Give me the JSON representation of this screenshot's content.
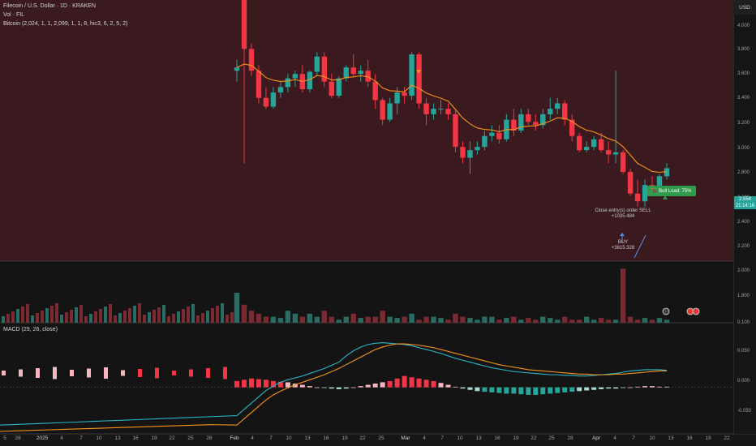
{
  "legend": {
    "title": "Filecoin / U.S. Dollar · 1D · KRAKEN",
    "vol": "Vol · FIL",
    "indicator": "Bitcoin (2,024, 1, 1, 2,099, 1, 1, 8, hic3, 6, 2, 5, 2)",
    "macd": "MACD (29, 26, close)"
  },
  "price_axis": {
    "currency": "USD",
    "ticks": [
      "4.000",
      "3.800",
      "3.600",
      "3.400",
      "3.200",
      "3.000",
      "2.800",
      "2.600",
      "2.400",
      "2.200",
      "2.000",
      "1.800",
      "0.100",
      "0.050",
      "0.000",
      "-0.050"
    ],
    "current_price": "2.554",
    "countdown": "21:14:16"
  },
  "x_axis": [
    "5",
    "28",
    "2025",
    "4",
    "7",
    "10",
    "13",
    "16",
    "19",
    "22",
    "25",
    "28",
    "Feb",
    "4",
    "7",
    "10",
    "13",
    "16",
    "19",
    "22",
    "25",
    "Mar",
    "4",
    "7",
    "10",
    "13",
    "16",
    "19",
    "22",
    "25",
    "28",
    "Apr",
    "4",
    "7",
    "10",
    "13",
    "16",
    "19",
    "22"
  ],
  "annotations": {
    "close_label": "Close entry(s) order SELL",
    "close_value": "+1035.484",
    "buy_label": "BUY",
    "buy_value": "+3615.328",
    "bull_badge": "Bull Load: 75%"
  },
  "colors": {
    "bull": "#26a69a",
    "bear": "#f23645",
    "ma": "#f7931a",
    "macd_line": "#29b6c6",
    "signal_line": "#f7931a",
    "panel_bg": "#3a1a1e"
  },
  "chart_data": {
    "type": "candlestick",
    "price_range": [
      1.7,
      4.1
    ],
    "candles": [
      {
        "o": 3.45,
        "h": 3.55,
        "l": 3.35,
        "c": 3.48
      },
      {
        "o": 4.3,
        "h": 4.4,
        "l": 2.6,
        "c": 3.65
      },
      {
        "o": 3.65,
        "h": 3.7,
        "l": 3.4,
        "c": 3.45
      },
      {
        "o": 3.45,
        "h": 3.5,
        "l": 3.15,
        "c": 3.2
      },
      {
        "o": 3.2,
        "h": 3.3,
        "l": 3.1,
        "c": 3.12
      },
      {
        "o": 3.12,
        "h": 3.3,
        "l": 3.1,
        "c": 3.25
      },
      {
        "o": 3.25,
        "h": 3.35,
        "l": 3.2,
        "c": 3.3
      },
      {
        "o": 3.3,
        "h": 3.42,
        "l": 3.25,
        "c": 3.38
      },
      {
        "o": 3.38,
        "h": 3.45,
        "l": 3.3,
        "c": 3.42
      },
      {
        "o": 3.42,
        "h": 3.5,
        "l": 3.25,
        "c": 3.28
      },
      {
        "o": 3.28,
        "h": 3.45,
        "l": 3.25,
        "c": 3.44
      },
      {
        "o": 3.44,
        "h": 3.62,
        "l": 3.4,
        "c": 3.58
      },
      {
        "o": 3.58,
        "h": 3.62,
        "l": 3.3,
        "c": 3.35
      },
      {
        "o": 3.35,
        "h": 3.42,
        "l": 3.2,
        "c": 3.22
      },
      {
        "o": 3.22,
        "h": 3.4,
        "l": 3.2,
        "c": 3.38
      },
      {
        "o": 3.38,
        "h": 3.5,
        "l": 3.35,
        "c": 3.48
      },
      {
        "o": 3.48,
        "h": 3.6,
        "l": 3.4,
        "c": 3.42
      },
      {
        "o": 3.42,
        "h": 3.5,
        "l": 3.35,
        "c": 3.45
      },
      {
        "o": 3.45,
        "h": 3.55,
        "l": 3.3,
        "c": 3.35
      },
      {
        "o": 3.35,
        "h": 3.42,
        "l": 3.1,
        "c": 3.18
      },
      {
        "o": 3.18,
        "h": 3.2,
        "l": 2.95,
        "c": 3.0
      },
      {
        "o": 3.0,
        "h": 3.2,
        "l": 2.98,
        "c": 3.15
      },
      {
        "o": 3.15,
        "h": 3.3,
        "l": 3.05,
        "c": 3.25
      },
      {
        "o": 3.25,
        "h": 3.3,
        "l": 3.15,
        "c": 3.22
      },
      {
        "o": 3.22,
        "h": 3.62,
        "l": 3.18,
        "c": 3.6
      },
      {
        "o": 3.6,
        "h": 3.62,
        "l": 3.1,
        "c": 3.15
      },
      {
        "o": 3.15,
        "h": 3.2,
        "l": 2.95,
        "c": 3.05
      },
      {
        "o": 3.05,
        "h": 3.15,
        "l": 3.0,
        "c": 3.1
      },
      {
        "o": 3.1,
        "h": 3.18,
        "l": 3.05,
        "c": 3.1
      },
      {
        "o": 3.1,
        "h": 3.15,
        "l": 3.0,
        "c": 3.05
      },
      {
        "o": 3.05,
        "h": 3.1,
        "l": 2.7,
        "c": 2.75
      },
      {
        "o": 2.75,
        "h": 2.8,
        "l": 2.6,
        "c": 2.65
      },
      {
        "o": 2.65,
        "h": 2.8,
        "l": 2.5,
        "c": 2.72
      },
      {
        "o": 2.72,
        "h": 2.8,
        "l": 2.68,
        "c": 2.75
      },
      {
        "o": 2.75,
        "h": 2.9,
        "l": 2.72,
        "c": 2.85
      },
      {
        "o": 2.85,
        "h": 2.95,
        "l": 2.8,
        "c": 2.88
      },
      {
        "o": 2.88,
        "h": 2.95,
        "l": 2.78,
        "c": 2.82
      },
      {
        "o": 2.82,
        "h": 3.05,
        "l": 2.8,
        "c": 3.0
      },
      {
        "o": 3.0,
        "h": 3.1,
        "l": 2.85,
        "c": 2.9
      },
      {
        "o": 2.9,
        "h": 3.1,
        "l": 2.88,
        "c": 3.05
      },
      {
        "o": 3.05,
        "h": 3.1,
        "l": 2.95,
        "c": 2.98
      },
      {
        "o": 2.98,
        "h": 3.05,
        "l": 2.9,
        "c": 2.95
      },
      {
        "o": 2.95,
        "h": 3.1,
        "l": 2.92,
        "c": 3.05
      },
      {
        "o": 3.05,
        "h": 3.2,
        "l": 3.0,
        "c": 3.1
      },
      {
        "o": 3.1,
        "h": 3.2,
        "l": 3.05,
        "c": 3.15
      },
      {
        "o": 3.15,
        "h": 3.18,
        "l": 2.95,
        "c": 3.0
      },
      {
        "o": 3.0,
        "h": 3.05,
        "l": 2.8,
        "c": 2.85
      },
      {
        "o": 2.85,
        "h": 2.88,
        "l": 2.7,
        "c": 2.72
      },
      {
        "o": 2.72,
        "h": 2.8,
        "l": 2.7,
        "c": 2.75
      },
      {
        "o": 2.75,
        "h": 2.85,
        "l": 2.72,
        "c": 2.82
      },
      {
        "o": 2.82,
        "h": 2.88,
        "l": 2.7,
        "c": 2.72
      },
      {
        "o": 2.72,
        "h": 2.8,
        "l": 2.6,
        "c": 2.68
      },
      {
        "o": 2.68,
        "h": 3.45,
        "l": 2.6,
        "c": 2.7
      },
      {
        "o": 2.7,
        "h": 2.72,
        "l": 2.5,
        "c": 2.52
      },
      {
        "o": 2.52,
        "h": 2.55,
        "l": 2.3,
        "c": 2.32
      },
      {
        "o": 2.32,
        "h": 2.45,
        "l": 2.2,
        "c": 2.25
      },
      {
        "o": 2.25,
        "h": 2.45,
        "l": 2.2,
        "c": 2.4
      },
      {
        "o": 2.4,
        "h": 2.48,
        "l": 2.3,
        "c": 2.35
      },
      {
        "o": 2.35,
        "h": 2.5,
        "l": 2.33,
        "c": 2.48
      },
      {
        "o": 2.48,
        "h": 2.6,
        "l": 2.45,
        "c": 2.554
      }
    ],
    "volume": [
      1.9,
      1.7,
      1.6,
      1.55,
      1.5,
      1.5,
      1.48,
      1.6,
      1.55,
      1.5,
      1.55,
      1.5,
      1.6,
      1.5,
      1.45,
      1.5,
      1.55,
      1.48,
      1.5,
      1.5,
      1.6,
      1.5,
      1.48,
      1.5,
      1.55,
      1.45,
      1.5,
      1.5,
      1.48,
      1.45,
      1.55,
      1.5,
      1.48,
      1.45,
      1.5,
      1.5,
      1.45,
      1.48,
      1.5,
      1.45,
      1.48,
      1.45,
      1.5,
      1.48,
      1.45,
      1.5,
      1.45,
      1.45,
      1.5,
      1.45,
      1.48,
      1.45,
      1.45,
      2.3,
      1.5,
      1.45,
      1.48,
      1.45,
      1.48,
      1.45
    ],
    "macd": {
      "hist": [
        0.01,
        0.012,
        0.014,
        0.013,
        0.012,
        0.01,
        0.009,
        0.008,
        0.006,
        0.004,
        0.002,
        0.0,
        -0.001,
        -0.002,
        -0.003,
        -0.002,
        0.0,
        0.002,
        0.004,
        0.006,
        0.008,
        0.01,
        0.014,
        0.018,
        0.016,
        0.014,
        0.012,
        0.01,
        0.007,
        0.004,
        0.001,
        -0.002,
        -0.004,
        -0.006,
        -0.007,
        -0.008,
        -0.009,
        -0.01,
        -0.01,
        -0.011,
        -0.012,
        -0.012,
        -0.011,
        -0.01,
        -0.009,
        -0.008,
        -0.007,
        -0.006,
        -0.005,
        -0.004,
        -0.003,
        -0.002,
        -0.002,
        -0.001,
        0.0,
        0.001,
        0.002,
        0.002,
        0.001,
        0.001
      ],
      "macd_line": [
        -0.045,
        -0.035,
        -0.025,
        -0.015,
        -0.005,
        0.002,
        0.008,
        0.012,
        0.015,
        0.018,
        0.022,
        0.026,
        0.03,
        0.035,
        0.04,
        0.05,
        0.058,
        0.064,
        0.068,
        0.07,
        0.071,
        0.07,
        0.069,
        0.068,
        0.066,
        0.063,
        0.06,
        0.057,
        0.054,
        0.05,
        0.046,
        0.043,
        0.04,
        0.037,
        0.034,
        0.031,
        0.029,
        0.027,
        0.025,
        0.024,
        0.023,
        0.022,
        0.021,
        0.02,
        0.02,
        0.019,
        0.019,
        0.018,
        0.018,
        0.019,
        0.02,
        0.021,
        0.022,
        0.024,
        0.026,
        0.027,
        0.028,
        0.028,
        0.028,
        0.027
      ],
      "signal_line": [
        -0.06,
        -0.05,
        -0.04,
        -0.03,
        -0.02,
        -0.012,
        -0.006,
        -0.001,
        0.004,
        0.008,
        0.012,
        0.016,
        0.02,
        0.025,
        0.03,
        0.036,
        0.042,
        0.048,
        0.054,
        0.06,
        0.064,
        0.067,
        0.069,
        0.069,
        0.068,
        0.067,
        0.065,
        0.063,
        0.06,
        0.057,
        0.054,
        0.051,
        0.048,
        0.045,
        0.042,
        0.039,
        0.036,
        0.034,
        0.032,
        0.03,
        0.028,
        0.027,
        0.026,
        0.025,
        0.024,
        0.023,
        0.022,
        0.021,
        0.021,
        0.02,
        0.02,
        0.02,
        0.021,
        0.021,
        0.022,
        0.023,
        0.024,
        0.025,
        0.026,
        0.026
      ],
      "range": [
        -0.07,
        0.1
      ]
    }
  }
}
